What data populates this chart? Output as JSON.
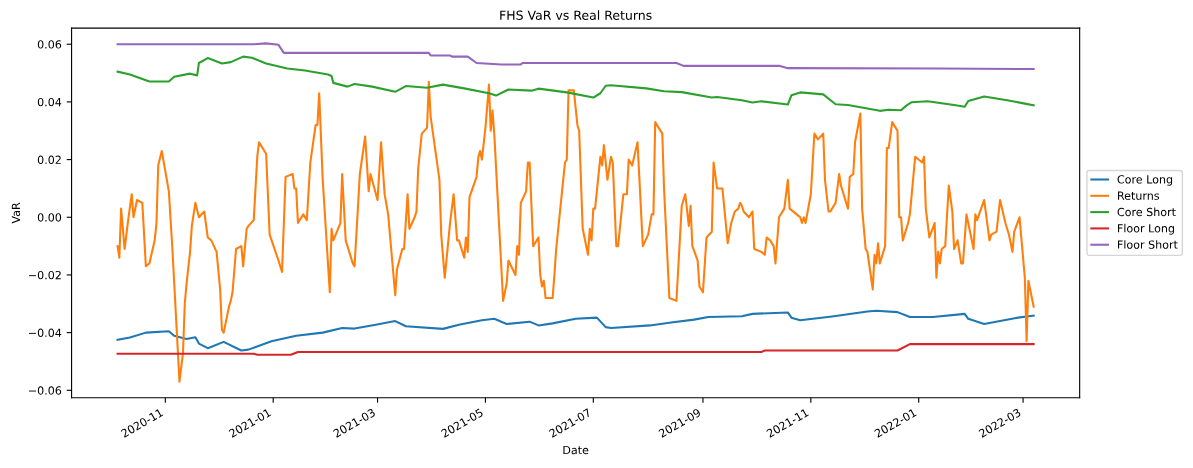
{
  "chart_data": {
    "type": "line",
    "title": "FHS VaR vs Real Returns",
    "xlabel": "Date",
    "ylabel": "VaR",
    "xlim": [
      "2020-09-09",
      "2022-04-02"
    ],
    "ylim": [
      -0.0626,
      0.0656
    ],
    "xticks": [
      {
        "value": "2020-11-01",
        "label": "2020-11"
      },
      {
        "value": "2021-01-01",
        "label": "2021-01"
      },
      {
        "value": "2021-03-01",
        "label": "2021-03"
      },
      {
        "value": "2021-05-01",
        "label": "2021-05"
      },
      {
        "value": "2021-07-01",
        "label": "2021-07"
      },
      {
        "value": "2021-09-01",
        "label": "2021-09"
      },
      {
        "value": "2021-11-01",
        "label": "2021-11"
      },
      {
        "value": "2022-01-01",
        "label": "2022-01"
      },
      {
        "value": "2022-03-01",
        "label": "2022-03"
      }
    ],
    "yticks": [
      {
        "value": -0.06,
        "label": "−0.06"
      },
      {
        "value": -0.04,
        "label": "−0.04"
      },
      {
        "value": -0.02,
        "label": "−0.02"
      },
      {
        "value": 0,
        "label": "0.00"
      },
      {
        "value": 0.02,
        "label": "0.02"
      },
      {
        "value": 0.04,
        "label": "0.04"
      },
      {
        "value": 0.06,
        "label": "0.06"
      }
    ],
    "grid": false,
    "legend": "right",
    "marker": "none",
    "line_style": "solid",
    "series": [
      {
        "name": "Core Long",
        "color": "#1f77b4",
        "x": [
          "2020-10-05",
          "2020-10-12",
          "2020-10-21",
          "2020-11-03",
          "2020-11-06",
          "2020-11-13",
          "2020-11-18",
          "2020-11-20",
          "2020-11-25",
          "2020-12-04",
          "2020-12-14",
          "2020-12-18",
          "2020-12-31",
          "2021-01-14",
          "2021-01-29",
          "2021-02-09",
          "2021-02-16",
          "2021-02-28",
          "2021-03-11",
          "2021-03-17",
          "2021-04-07",
          "2021-04-16",
          "2021-04-29",
          "2021-05-06",
          "2021-05-13",
          "2021-05-26",
          "2021-05-31",
          "2021-06-08",
          "2021-06-21",
          "2021-07-03",
          "2021-07-08",
          "2021-07-11",
          "2021-08-02",
          "2021-08-14",
          "2021-08-27",
          "2021-09-04",
          "2021-09-23",
          "2021-09-29",
          "2021-10-19",
          "2021-10-21",
          "2021-10-26",
          "2021-11-13",
          "2021-12-03",
          "2021-12-08",
          "2021-12-20",
          "2021-12-27",
          "2022-01-09",
          "2022-01-27",
          "2022-01-29",
          "2022-02-07",
          "2022-02-25",
          "2022-03-07"
        ],
        "values": [
          -0.0425,
          -0.0417,
          -0.04,
          -0.0395,
          -0.0411,
          -0.0422,
          -0.0416,
          -0.0438,
          -0.0454,
          -0.0432,
          -0.0462,
          -0.0459,
          -0.043,
          -0.0411,
          -0.04,
          -0.0384,
          -0.0386,
          -0.0373,
          -0.036,
          -0.0378,
          -0.0387,
          -0.0373,
          -0.0357,
          -0.0352,
          -0.037,
          -0.0362,
          -0.0375,
          -0.0368,
          -0.0352,
          -0.0348,
          -0.0381,
          -0.0384,
          -0.0375,
          -0.0365,
          -0.0355,
          -0.0346,
          -0.0343,
          -0.0335,
          -0.033,
          -0.0348,
          -0.0357,
          -0.0344,
          -0.0327,
          -0.0324,
          -0.0329,
          -0.0346,
          -0.0346,
          -0.0335,
          -0.0352,
          -0.037,
          -0.0349,
          -0.0341
        ]
      },
      {
        "name": "Returns",
        "color": "#ff7f0e",
        "x": [
          "2020-10-05",
          "2020-10-06",
          "2020-10-07",
          "2020-10-09",
          "2020-10-11",
          "2020-10-13",
          "2020-10-14",
          "2020-10-16",
          "2020-10-19",
          "2020-10-21",
          "2020-10-23",
          "2020-10-26",
          "2020-10-27",
          "2020-10-28",
          "2020-10-30",
          "2020-11-03",
          "2020-11-05",
          "2020-11-09",
          "2020-11-11",
          "2020-11-12",
          "2020-11-13",
          "2020-11-15",
          "2020-11-16",
          "2020-11-18",
          "2020-11-20",
          "2020-11-23",
          "2020-11-25",
          "2020-11-27",
          "2020-11-30",
          "2020-12-02",
          "2020-12-03",
          "2020-12-04",
          "2020-12-07",
          "2020-12-08",
          "2020-12-09",
          "2020-12-11",
          "2020-12-14",
          "2020-12-15",
          "2020-12-17",
          "2020-12-18",
          "2020-12-21",
          "2020-12-23",
          "2020-12-24",
          "2020-12-28",
          "2020-12-30",
          "2021-01-04",
          "2021-01-06",
          "2021-01-08",
          "2021-01-12",
          "2021-01-13",
          "2021-01-14",
          "2021-01-15",
          "2021-01-18",
          "2021-01-20",
          "2021-01-22",
          "2021-01-25",
          "2021-01-26",
          "2021-01-27",
          "2021-01-29",
          "2021-02-02",
          "2021-02-03",
          "2021-02-04",
          "2021-02-08",
          "2021-02-09",
          "2021-02-11",
          "2021-02-15",
          "2021-02-16",
          "2021-02-19",
          "2021-02-22",
          "2021-02-24",
          "2021-02-25",
          "2021-03-01",
          "2021-03-03",
          "2021-03-05",
          "2021-03-07",
          "2021-03-11",
          "2021-03-12",
          "2021-03-15",
          "2021-03-16",
          "2021-03-18",
          "2021-03-19",
          "2021-03-22",
          "2021-03-23",
          "2021-03-24",
          "2021-03-26",
          "2021-03-29",
          "2021-03-30",
          "2021-03-31",
          "2021-04-05",
          "2021-04-06",
          "2021-04-08",
          "2021-04-11",
          "2021-04-13",
          "2021-04-15",
          "2021-04-16",
          "2021-04-19",
          "2021-04-20",
          "2021-04-21",
          "2021-04-22",
          "2021-04-26",
          "2021-04-27",
          "2021-04-28",
          "2021-04-29",
          "2021-05-01",
          "2021-05-03",
          "2021-05-04",
          "2021-05-05",
          "2021-05-06",
          "2021-05-11",
          "2021-05-13",
          "2021-05-14",
          "2021-05-18",
          "2021-05-19",
          "2021-05-20",
          "2021-05-21",
          "2021-05-24",
          "2021-05-25",
          "2021-05-26",
          "2021-05-28",
          "2021-05-31",
          "2021-06-01",
          "2021-06-02",
          "2021-06-03",
          "2021-06-04",
          "2021-06-08",
          "2021-06-09",
          "2021-06-10",
          "2021-06-15",
          "2021-06-16",
          "2021-06-17",
          "2021-06-20",
          "2021-06-22",
          "2021-06-23",
          "2021-06-25",
          "2021-06-28",
          "2021-06-29",
          "2021-06-30",
          "2021-07-01",
          "2021-07-02",
          "2021-07-05",
          "2021-07-06",
          "2021-07-07",
          "2021-07-09",
          "2021-07-11",
          "2021-07-12",
          "2021-07-14",
          "2021-07-15",
          "2021-07-18",
          "2021-07-20",
          "2021-07-21",
          "2021-07-23",
          "2021-07-26",
          "2021-07-27",
          "2021-07-29",
          "2021-08-01",
          "2021-08-03",
          "2021-08-04",
          "2021-08-05",
          "2021-08-09",
          "2021-08-10",
          "2021-08-13",
          "2021-08-17",
          "2021-08-20",
          "2021-08-22",
          "2021-08-24",
          "2021-08-25",
          "2021-08-26",
          "2021-08-29",
          "2021-08-30",
          "2021-09-01",
          "2021-09-03",
          "2021-09-06",
          "2021-09-07",
          "2021-09-09",
          "2021-09-12",
          "2021-09-15",
          "2021-09-17",
          "2021-09-19",
          "2021-09-21",
          "2021-09-22",
          "2021-09-23",
          "2021-09-24",
          "2021-09-27",
          "2021-09-29",
          "2021-09-30",
          "2021-10-04",
          "2021-10-06",
          "2021-10-07",
          "2021-10-09",
          "2021-10-11",
          "2021-10-12",
          "2021-10-14",
          "2021-10-17",
          "2021-10-19",
          "2021-10-20",
          "2021-10-24",
          "2021-10-26",
          "2021-10-27",
          "2021-10-28",
          "2021-10-29",
          "2021-11-01",
          "2021-11-03",
          "2021-11-05",
          "2021-11-08",
          "2021-11-09",
          "2021-11-11",
          "2021-11-12",
          "2021-11-15",
          "2021-11-17",
          "2021-11-18",
          "2021-11-22",
          "2021-11-23",
          "2021-11-25",
          "2021-11-26",
          "2021-11-29",
          "2021-11-30",
          "2021-12-02",
          "2021-12-03",
          "2021-12-06",
          "2021-12-07",
          "2021-12-08",
          "2021-12-09",
          "2021-12-10",
          "2021-12-13",
          "2021-12-14",
          "2021-12-15",
          "2021-12-17",
          "2021-12-20",
          "2021-12-21",
          "2021-12-22",
          "2021-12-23",
          "2021-12-26",
          "2021-12-27",
          "2021-12-30",
          "2022-01-03",
          "2022-01-04",
          "2022-01-05",
          "2022-01-07",
          "2022-01-10",
          "2022-01-11",
          "2022-01-12",
          "2022-01-13",
          "2022-01-14",
          "2022-01-16",
          "2022-01-18",
          "2022-01-20",
          "2022-01-21",
          "2022-01-23",
          "2022-01-25",
          "2022-01-26",
          "2022-01-28",
          "2022-02-01",
          "2022-02-02",
          "2022-02-03",
          "2022-02-07",
          "2022-02-10",
          "2022-02-11",
          "2022-02-14",
          "2022-02-16",
          "2022-02-19",
          "2022-02-21",
          "2022-02-23",
          "2022-02-24",
          "2022-02-27",
          "2022-03-02",
          "2022-03-03",
          "2022-03-04",
          "2022-03-07"
        ],
        "values": [
          -0.01,
          -0.014,
          0.003,
          -0.011,
          -0.001,
          0.008,
          0.0,
          0.006,
          0.005,
          -0.017,
          -0.016,
          -0.008,
          -0.002,
          0.018,
          0.023,
          0.009,
          -0.011,
          -0.057,
          -0.047,
          -0.03,
          -0.023,
          -0.012,
          -0.003,
          0.005,
          0.0,
          0.002,
          -0.007,
          -0.008,
          -0.012,
          -0.025,
          -0.039,
          -0.04,
          -0.031,
          -0.029,
          -0.026,
          -0.011,
          -0.01,
          -0.017,
          -0.004,
          -0.003,
          -0.001,
          0.021,
          0.026,
          0.022,
          -0.006,
          -0.015,
          -0.019,
          0.014,
          0.015,
          0.01,
          0.01,
          -0.002,
          0.001,
          -0.001,
          0.019,
          0.032,
          0.032,
          0.043,
          0.013,
          -0.026,
          -0.004,
          -0.008,
          -0.002,
          0.015,
          -0.008,
          -0.016,
          -0.017,
          0.015,
          0.028,
          0.009,
          0.015,
          0.006,
          0.026,
          0.008,
          0.001,
          -0.027,
          -0.018,
          -0.011,
          -0.011,
          0.008,
          -0.004,
          0.0,
          0.002,
          0.017,
          0.029,
          0.031,
          0.047,
          0.035,
          0.013,
          -0.006,
          -0.021,
          -0.002,
          0.008,
          -0.008,
          -0.008,
          -0.014,
          -0.007,
          -0.012,
          0.007,
          0.014,
          0.021,
          0.023,
          0.02,
          0.031,
          0.046,
          0.03,
          0.037,
          0.029,
          -0.029,
          -0.023,
          -0.015,
          -0.02,
          -0.01,
          -0.013,
          0.005,
          0.009,
          0.019,
          0.019,
          -0.01,
          -0.007,
          -0.02,
          -0.024,
          -0.022,
          -0.028,
          -0.028,
          -0.02,
          -0.011,
          0.019,
          0.02,
          0.044,
          0.044,
          0.032,
          0.03,
          -0.004,
          -0.013,
          -0.004,
          -0.008,
          0.003,
          0.003,
          0.021,
          0.018,
          0.025,
          0.013,
          0.021,
          0.019,
          -0.01,
          -0.01,
          0.008,
          0.008,
          0.02,
          0.018,
          0.026,
          0.014,
          -0.01,
          -0.006,
          0.001,
          0.001,
          0.033,
          0.029,
          0.01,
          -0.028,
          -0.029,
          0.004,
          0.008,
          -0.003,
          0.004,
          -0.01,
          -0.015,
          -0.024,
          -0.026,
          -0.007,
          -0.005,
          0.019,
          0.01,
          0.01,
          -0.009,
          -0.002,
          0.002,
          0.003,
          0.005,
          0.004,
          0.002,
          0.0,
          0.002,
          -0.011,
          -0.012,
          -0.013,
          -0.007,
          -0.008,
          -0.01,
          -0.016,
          0.0,
          0.003,
          0.013,
          0.003,
          0.001,
          0.0,
          -0.002,
          0.0,
          -0.002,
          0.008,
          0.029,
          0.027,
          0.029,
          0.013,
          0.002,
          0.002,
          0.005,
          0.015,
          0.011,
          0.003,
          0.014,
          0.015,
          0.026,
          0.036,
          0.003,
          -0.011,
          -0.012,
          -0.025,
          -0.013,
          -0.016,
          -0.009,
          -0.016,
          -0.01,
          0.024,
          0.024,
          0.033,
          0.03,
          0.0,
          0.0,
          -0.008,
          -0.002,
          0.001,
          0.021,
          0.019,
          0.021,
          0.003,
          -0.007,
          -0.002,
          -0.021,
          -0.012,
          -0.016,
          -0.011,
          -0.01,
          0.011,
          0.002,
          -0.011,
          -0.008,
          -0.016,
          -0.016,
          0.001,
          -0.011,
          0.001,
          -0.001,
          0.006,
          -0.008,
          -0.006,
          -0.005,
          0.006,
          -0.002,
          -0.006,
          -0.012,
          -0.005,
          0.0,
          -0.021,
          -0.043,
          -0.022,
          -0.031
        ]
      },
      {
        "name": "Core Short",
        "color": "#2ca02c",
        "x": [
          "2020-10-05",
          "2020-10-12",
          "2020-10-23",
          "2020-11-03",
          "2020-11-06",
          "2020-11-15",
          "2020-11-19",
          "2020-11-20",
          "2020-11-25",
          "2020-12-03",
          "2020-12-08",
          "2020-12-15",
          "2020-12-20",
          "2020-12-28",
          "2021-01-09",
          "2021-01-19",
          "2021-02-01",
          "2021-02-03",
          "2021-02-04",
          "2021-02-12",
          "2021-02-16",
          "2021-02-26",
          "2021-03-11",
          "2021-03-17",
          "2021-03-29",
          "2021-04-07",
          "2021-04-19",
          "2021-05-03",
          "2021-05-07",
          "2021-05-14",
          "2021-05-27",
          "2021-05-31",
          "2021-06-16",
          "2021-07-01",
          "2021-07-05",
          "2021-07-08",
          "2021-07-11",
          "2021-07-31",
          "2021-08-10",
          "2021-08-20",
          "2021-09-06",
          "2021-09-09",
          "2021-09-23",
          "2021-09-29",
          "2021-10-04",
          "2021-10-19",
          "2021-10-21",
          "2021-10-26",
          "2021-11-08",
          "2021-11-15",
          "2021-11-22",
          "2021-12-10",
          "2021-12-15",
          "2021-12-22",
          "2021-12-25",
          "2021-12-28",
          "2022-01-06",
          "2022-01-21",
          "2022-01-27",
          "2022-01-29",
          "2022-02-07",
          "2022-02-20",
          "2022-03-02",
          "2022-03-07"
        ],
        "values": [
          0.0505,
          0.0495,
          0.0471,
          0.0471,
          0.0487,
          0.0498,
          0.0492,
          0.0535,
          0.0552,
          0.0533,
          0.0538,
          0.0557,
          0.0553,
          0.0533,
          0.0516,
          0.0509,
          0.0495,
          0.049,
          0.0466,
          0.0453,
          0.0462,
          0.0453,
          0.0435,
          0.0455,
          0.0449,
          0.046,
          0.0447,
          0.043,
          0.0422,
          0.0443,
          0.0439,
          0.0446,
          0.0433,
          0.0415,
          0.043,
          0.0456,
          0.0458,
          0.0447,
          0.0437,
          0.0434,
          0.0415,
          0.0417,
          0.0406,
          0.0398,
          0.0402,
          0.0391,
          0.0423,
          0.0433,
          0.0426,
          0.0392,
          0.0389,
          0.0369,
          0.0373,
          0.0371,
          0.0387,
          0.0399,
          0.0402,
          0.0389,
          0.0383,
          0.0403,
          0.0419,
          0.0406,
          0.0394,
          0.0388
        ]
      },
      {
        "name": "Floor Long",
        "color": "#d62728",
        "x": [
          "2020-10-05",
          "2020-12-21",
          "2020-12-23",
          "2021-01-11",
          "2021-01-15",
          "2021-10-04",
          "2021-10-06",
          "2021-12-20",
          "2021-12-27",
          "2022-03-07"
        ],
        "values": [
          -0.0473,
          -0.0473,
          -0.0477,
          -0.0477,
          -0.0467,
          -0.0467,
          -0.0462,
          -0.0462,
          -0.044,
          -0.044
        ]
      },
      {
        "name": "Floor Short",
        "color": "#9467bd",
        "x": [
          "2020-10-05",
          "2020-12-21",
          "2020-12-28",
          "2021-01-04",
          "2021-01-07",
          "2021-03-30",
          "2021-03-31",
          "2021-04-11",
          "2021-04-12",
          "2021-04-21",
          "2021-04-26",
          "2021-05-10",
          "2021-05-21",
          "2021-05-22",
          "2021-08-17",
          "2021-08-21",
          "2021-10-14",
          "2021-10-19",
          "2022-01-12",
          "2022-03-07"
        ],
        "values": [
          0.06,
          0.06,
          0.0603,
          0.0598,
          0.057,
          0.057,
          0.0561,
          0.0561,
          0.0557,
          0.0557,
          0.0535,
          0.053,
          0.053,
          0.0535,
          0.0535,
          0.0525,
          0.0525,
          0.0517,
          0.0516,
          0.0514
        ]
      }
    ]
  }
}
